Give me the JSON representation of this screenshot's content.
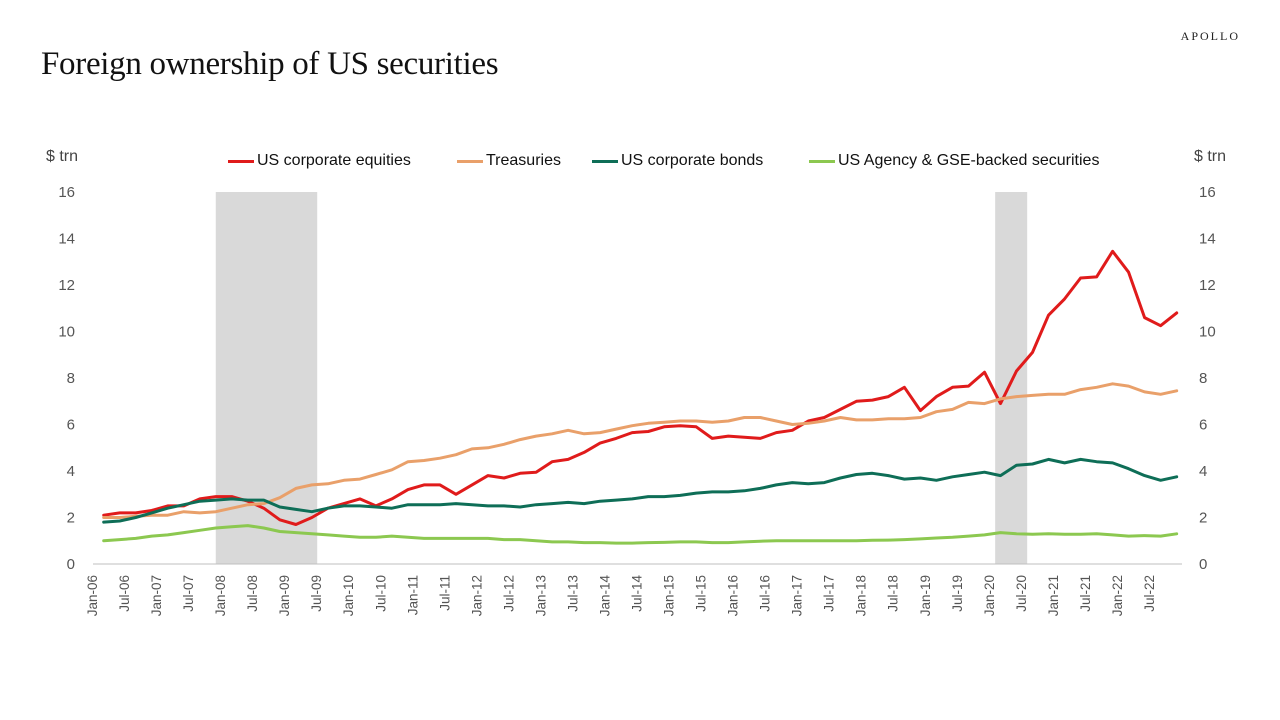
{
  "brand": "APOLLO",
  "title": "Foreign ownership of US securities",
  "chart_data": {
    "type": "line",
    "ylabel_left": "$ trn",
    "ylabel_right": "$ trn",
    "ylim": [
      0,
      16
    ],
    "yticks": [
      0,
      2,
      4,
      6,
      8,
      10,
      12,
      14,
      16
    ],
    "grid": false,
    "legend_position": "top",
    "x_tick_labels": [
      "Jan-06",
      "Jul-06",
      "Jan-07",
      "Jul-07",
      "Jan-08",
      "Jul-08",
      "Jan-09",
      "Jul-09",
      "Jan-10",
      "Jul-10",
      "Jan-11",
      "Jul-11",
      "Jan-12",
      "Jul-12",
      "Jan-13",
      "Jul-13",
      "Jan-14",
      "Jul-14",
      "Jan-15",
      "Jul-15",
      "Jan-16",
      "Jul-16",
      "Jan-17",
      "Jul-17",
      "Jan-18",
      "Jul-18",
      "Jan-19",
      "Jul-19",
      "Jan-20",
      "Jul-20",
      "Jan-21",
      "Jul-21",
      "Jan-22",
      "Jul-22"
    ],
    "x_frequency": "quarterly",
    "x_start": "Mar-06",
    "x_end": "Dec-22",
    "recessions": [
      {
        "start": "Dec-07",
        "end": "Jun-09"
      },
      {
        "start": "Feb-20",
        "end": "Jul-20"
      }
    ],
    "series": [
      {
        "name": "US corporate equities",
        "color": "#e01b1b",
        "values": [
          2.1,
          2.2,
          2.2,
          2.3,
          2.5,
          2.5,
          2.8,
          2.9,
          2.9,
          2.7,
          2.4,
          1.9,
          1.7,
          2.0,
          2.4,
          2.6,
          2.8,
          2.5,
          2.8,
          3.2,
          3.4,
          3.4,
          3.0,
          3.4,
          3.8,
          3.7,
          3.9,
          3.95,
          4.4,
          4.5,
          4.8,
          5.2,
          5.4,
          5.65,
          5.7,
          5.9,
          5.95,
          5.9,
          5.4,
          5.5,
          5.45,
          5.4,
          5.65,
          5.75,
          6.15,
          6.3,
          6.65,
          7.0,
          7.05,
          7.2,
          7.6,
          6.6,
          7.2,
          7.6,
          7.65,
          8.25,
          6.9,
          8.3,
          9.1,
          10.7,
          11.4,
          12.3,
          12.35,
          13.45,
          12.55,
          10.6,
          10.25,
          10.8
        ]
      },
      {
        "name": "Treasuries",
        "color": "#e9a06a",
        "values": [
          2.0,
          2.0,
          2.05,
          2.1,
          2.1,
          2.25,
          2.2,
          2.25,
          2.4,
          2.55,
          2.6,
          2.85,
          3.25,
          3.4,
          3.45,
          3.6,
          3.65,
          3.85,
          4.05,
          4.4,
          4.45,
          4.55,
          4.7,
          4.95,
          5.0,
          5.15,
          5.35,
          5.5,
          5.6,
          5.75,
          5.6,
          5.65,
          5.8,
          5.95,
          6.05,
          6.1,
          6.15,
          6.15,
          6.1,
          6.15,
          6.3,
          6.3,
          6.15,
          6.0,
          6.05,
          6.15,
          6.3,
          6.2,
          6.2,
          6.25,
          6.25,
          6.3,
          6.55,
          6.65,
          6.95,
          6.9,
          7.1,
          7.2,
          7.25,
          7.3,
          7.3,
          7.5,
          7.6,
          7.75,
          7.65,
          7.4,
          7.3,
          7.45
        ]
      },
      {
        "name": "US corporate bonds",
        "color": "#0e6e57",
        "values": [
          1.8,
          1.85,
          2.0,
          2.2,
          2.4,
          2.55,
          2.7,
          2.75,
          2.8,
          2.75,
          2.75,
          2.45,
          2.35,
          2.25,
          2.4,
          2.5,
          2.5,
          2.45,
          2.4,
          2.55,
          2.55,
          2.55,
          2.6,
          2.55,
          2.5,
          2.5,
          2.45,
          2.55,
          2.6,
          2.65,
          2.6,
          2.7,
          2.75,
          2.8,
          2.9,
          2.9,
          2.95,
          3.05,
          3.1,
          3.1,
          3.15,
          3.25,
          3.4,
          3.5,
          3.45,
          3.5,
          3.7,
          3.85,
          3.9,
          3.8,
          3.65,
          3.7,
          3.6,
          3.75,
          3.85,
          3.95,
          3.8,
          4.25,
          4.3,
          4.5,
          4.35,
          4.5,
          4.4,
          4.35,
          4.1,
          3.8,
          3.6,
          3.75
        ]
      },
      {
        "name": "US Agency & GSE-backed securities",
        "color": "#8cc850",
        "values": [
          1.0,
          1.05,
          1.1,
          1.2,
          1.25,
          1.35,
          1.45,
          1.55,
          1.6,
          1.65,
          1.55,
          1.4,
          1.35,
          1.3,
          1.25,
          1.2,
          1.15,
          1.15,
          1.2,
          1.15,
          1.1,
          1.1,
          1.1,
          1.1,
          1.1,
          1.05,
          1.05,
          1.0,
          0.95,
          0.95,
          0.92,
          0.92,
          0.9,
          0.9,
          0.92,
          0.93,
          0.95,
          0.95,
          0.92,
          0.92,
          0.95,
          0.98,
          1.0,
          1.0,
          1.0,
          1.0,
          1.0,
          1.0,
          1.02,
          1.03,
          1.05,
          1.08,
          1.12,
          1.15,
          1.2,
          1.25,
          1.35,
          1.3,
          1.28,
          1.3,
          1.28,
          1.28,
          1.3,
          1.25,
          1.2,
          1.22,
          1.2,
          1.3
        ]
      }
    ]
  }
}
